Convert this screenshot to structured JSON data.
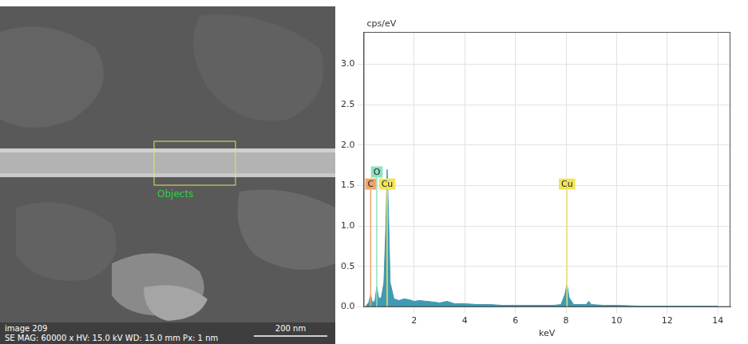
{
  "micrograph": {
    "image_label": "image 209",
    "info": "SE MAG: 60000 x HV: 15.0 kV WD: 15.0 mm Px: 1 nm",
    "scale_bar": "200 nm",
    "region_label": "Objects"
  },
  "chart_data": {
    "type": "line",
    "x_label": "keV",
    "y_label": "cps/eV",
    "x": [
      0.1,
      0.2,
      0.28,
      0.35,
      0.45,
      0.52,
      0.6,
      0.7,
      0.8,
      0.88,
      0.93,
      0.98,
      1.05,
      1.2,
      1.4,
      1.6,
      1.8,
      2.0,
      2.2,
      2.5,
      2.8,
      3.0,
      3.3,
      3.6,
      4.0,
      4.5,
      5.0,
      5.5,
      6.0,
      6.5,
      7.0,
      7.5,
      7.8,
      7.95,
      8.04,
      8.12,
      8.3,
      8.8,
      8.9,
      9.0,
      9.5,
      10.0,
      11.0,
      12.0,
      13.0,
      14.0
    ],
    "values": [
      0.02,
      0.05,
      0.15,
      0.05,
      0.08,
      0.25,
      0.1,
      0.12,
      0.3,
      1.0,
      1.7,
      1.2,
      0.3,
      0.1,
      0.08,
      0.1,
      0.09,
      0.07,
      0.08,
      0.07,
      0.06,
      0.05,
      0.07,
      0.04,
      0.04,
      0.03,
      0.03,
      0.02,
      0.02,
      0.02,
      0.02,
      0.02,
      0.03,
      0.15,
      0.28,
      0.12,
      0.03,
      0.03,
      0.07,
      0.03,
      0.02,
      0.02,
      0.01,
      0.01,
      0.01,
      0.01
    ],
    "color": "#3f9ab3",
    "xlim": [
      0,
      14.5
    ],
    "xticks": [
      2,
      4,
      6,
      8,
      10,
      12,
      14
    ],
    "ylim": [
      0,
      3.4
    ],
    "yticks": [
      {
        "value": 0,
        "label": "0.0"
      },
      {
        "value": 0.5,
        "label": "0.5"
      },
      {
        "value": 1,
        "label": "1.0"
      },
      {
        "value": 1.5,
        "label": "1.5"
      },
      {
        "value": 2,
        "label": "2.0"
      },
      {
        "value": 2.5,
        "label": "2.5"
      },
      {
        "value": 3,
        "label": "3.0"
      }
    ],
    "grid": true,
    "peak_labels": [
      {
        "label": "C",
        "x": 0.28,
        "y": 1.45,
        "color": "#f4a46b"
      },
      {
        "label": "O",
        "x": 0.52,
        "y": 1.6,
        "color": "#8fe0c0"
      },
      {
        "label": "Cu",
        "x": 0.93,
        "y": 1.45,
        "color": "#f2e45a"
      },
      {
        "label": "Cu",
        "x": 8.04,
        "y": 1.45,
        "color": "#f2e45a"
      }
    ]
  }
}
